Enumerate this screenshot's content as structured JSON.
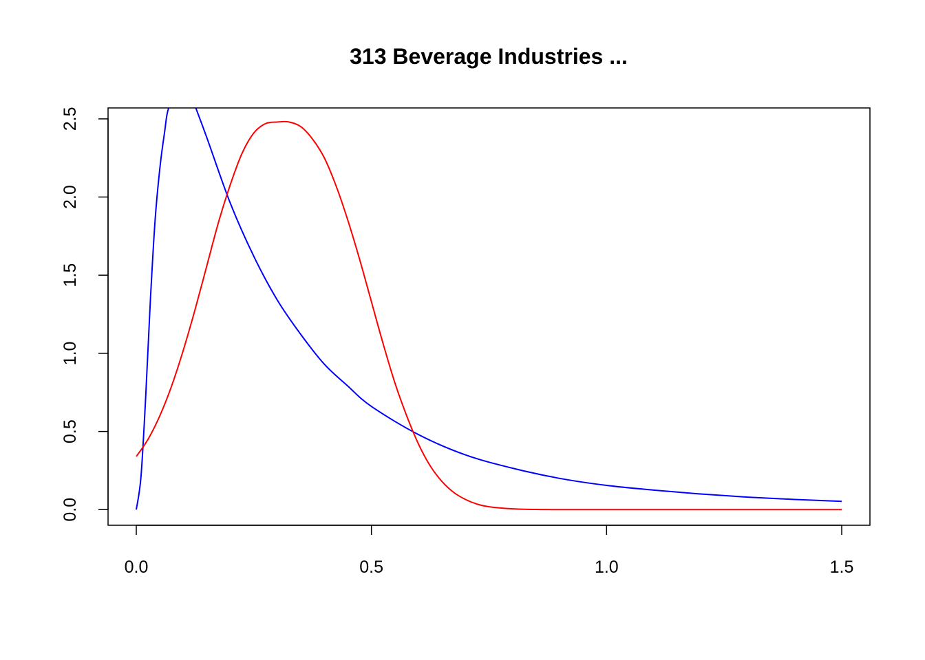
{
  "chart_data": {
    "type": "line",
    "title": "313 Beverage Industries ...",
    "xlabel": "",
    "ylabel": "",
    "xlim": [
      -0.06,
      1.56
    ],
    "ylim": [
      -0.1,
      2.57
    ],
    "x_ticks": [
      0.0,
      0.5,
      1.0,
      1.5
    ],
    "x_tick_labels": [
      "0.0",
      "0.5",
      "1.0",
      "1.5"
    ],
    "y_ticks": [
      0.0,
      0.5,
      1.0,
      1.5,
      2.0,
      2.5
    ],
    "y_tick_labels": [
      "0.0",
      "0.5",
      "1.0",
      "1.5",
      "2.0",
      "2.5"
    ],
    "grid": false,
    "legend": "none",
    "series": [
      {
        "color": "#0000ff",
        "x": [
          0.0,
          0.01,
          0.02,
          0.03,
          0.04,
          0.05,
          0.06,
          0.07,
          0.1,
          0.12,
          0.15,
          0.2,
          0.25,
          0.3,
          0.35,
          0.4,
          0.45,
          0.5,
          0.6,
          0.7,
          0.8,
          0.9,
          1.0,
          1.1,
          1.2,
          1.3,
          1.4,
          1.5
        ],
        "y": [
          0.0,
          0.21,
          0.72,
          1.34,
          1.85,
          2.18,
          2.41,
          2.58,
          2.75,
          2.62,
          2.38,
          1.96,
          1.62,
          1.34,
          1.12,
          0.93,
          0.79,
          0.66,
          0.48,
          0.35,
          0.265,
          0.2,
          0.155,
          0.125,
          0.1,
          0.08,
          0.065,
          0.053
        ]
      },
      {
        "color": "#ff0000",
        "x": [
          0.0,
          0.025,
          0.05,
          0.075,
          0.1,
          0.125,
          0.15,
          0.175,
          0.2,
          0.225,
          0.25,
          0.275,
          0.3,
          0.325,
          0.35,
          0.375,
          0.4,
          0.425,
          0.45,
          0.475,
          0.5,
          0.525,
          0.55,
          0.575,
          0.6,
          0.625,
          0.65,
          0.675,
          0.7,
          0.725,
          0.75,
          0.8,
          0.85,
          0.9,
          0.95,
          1.0,
          1.1,
          1.2,
          1.3,
          1.4,
          1.5
        ],
        "y": [
          0.34,
          0.45,
          0.6,
          0.79,
          1.02,
          1.28,
          1.56,
          1.84,
          2.08,
          2.28,
          2.41,
          2.47,
          2.48,
          2.48,
          2.45,
          2.37,
          2.25,
          2.07,
          1.85,
          1.6,
          1.33,
          1.06,
          0.81,
          0.6,
          0.42,
          0.28,
          0.18,
          0.11,
          0.065,
          0.035,
          0.018,
          0.005,
          0.001,
          0.0,
          0.0,
          0.0,
          0.0,
          0.0,
          0.0,
          0.0,
          0.0
        ]
      }
    ]
  }
}
